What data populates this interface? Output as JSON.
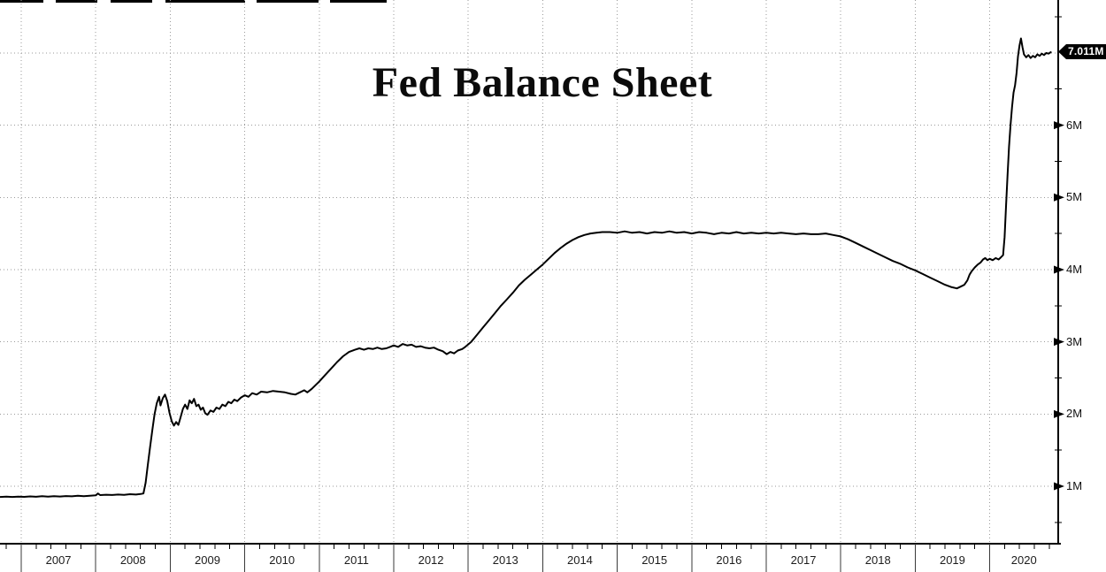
{
  "window": {
    "app": "terminal-chart"
  },
  "chart_data": {
    "type": "line",
    "title": "Fed Balance Sheet",
    "last_point_label": "7.011M",
    "legend": false,
    "grid": true,
    "x_axis": {
      "range": [
        2006.715,
        2020.92
      ],
      "tick_labels": [
        "2007",
        "2008",
        "2009",
        "2010",
        "2011",
        "2012",
        "2013",
        "2014",
        "2015",
        "2016",
        "2017",
        "2018",
        "2019",
        "2020"
      ],
      "gridline_years": [
        2007,
        2008,
        2009,
        2010,
        2011,
        2012,
        2013,
        2014,
        2015,
        2016,
        2017,
        2018,
        2019,
        2020
      ],
      "minor_ticks_per_year": 4
    },
    "y_axis": {
      "range": [
        0.205,
        7.733
      ],
      "unit": "M",
      "ticks": [
        {
          "value": 1,
          "label": "1M"
        },
        {
          "value": 2,
          "label": "2M"
        },
        {
          "value": 3,
          "label": "3M"
        },
        {
          "value": 4,
          "label": "4M"
        },
        {
          "value": 5,
          "label": "5M"
        },
        {
          "value": 6,
          "label": "6M"
        }
      ],
      "minor_tick_values": [
        0.5,
        1.5,
        2.5,
        3.5,
        4.5,
        5.5,
        6.5,
        7.5
      ]
    },
    "series": [
      {
        "name": "Fed Balance Sheet",
        "color": "#000000",
        "points": [
          [
            2006.72,
            0.853
          ],
          [
            2006.8,
            0.857
          ],
          [
            2006.88,
            0.852
          ],
          [
            2006.96,
            0.858
          ],
          [
            2007.04,
            0.854
          ],
          [
            2007.12,
            0.86
          ],
          [
            2007.2,
            0.855
          ],
          [
            2007.28,
            0.862
          ],
          [
            2007.36,
            0.857
          ],
          [
            2007.44,
            0.864
          ],
          [
            2007.52,
            0.859
          ],
          [
            2007.6,
            0.865
          ],
          [
            2007.68,
            0.861
          ],
          [
            2007.76,
            0.868
          ],
          [
            2007.84,
            0.863
          ],
          [
            2007.92,
            0.87
          ],
          [
            2008.0,
            0.875
          ],
          [
            2008.03,
            0.9
          ],
          [
            2008.06,
            0.878
          ],
          [
            2008.14,
            0.883
          ],
          [
            2008.22,
            0.879
          ],
          [
            2008.3,
            0.886
          ],
          [
            2008.38,
            0.882
          ],
          [
            2008.46,
            0.89
          ],
          [
            2008.54,
            0.886
          ],
          [
            2008.6,
            0.893
          ],
          [
            2008.64,
            0.9
          ],
          [
            2008.67,
            1.05
          ],
          [
            2008.7,
            1.3
          ],
          [
            2008.73,
            1.55
          ],
          [
            2008.76,
            1.78
          ],
          [
            2008.79,
            2.0
          ],
          [
            2008.82,
            2.15
          ],
          [
            2008.85,
            2.24
          ],
          [
            2008.87,
            2.12
          ],
          [
            2008.9,
            2.22
          ],
          [
            2008.93,
            2.27
          ],
          [
            2008.96,
            2.18
          ],
          [
            2008.99,
            2.02
          ],
          [
            2009.02,
            1.9
          ],
          [
            2009.05,
            1.84
          ],
          [
            2009.08,
            1.89
          ],
          [
            2009.11,
            1.85
          ],
          [
            2009.14,
            1.96
          ],
          [
            2009.17,
            2.07
          ],
          [
            2009.2,
            2.13
          ],
          [
            2009.23,
            2.07
          ],
          [
            2009.26,
            2.19
          ],
          [
            2009.29,
            2.15
          ],
          [
            2009.32,
            2.21
          ],
          [
            2009.35,
            2.11
          ],
          [
            2009.38,
            2.13
          ],
          [
            2009.41,
            2.06
          ],
          [
            2009.44,
            2.09
          ],
          [
            2009.47,
            2.01
          ],
          [
            2009.5,
            1.99
          ],
          [
            2009.54,
            2.05
          ],
          [
            2009.58,
            2.03
          ],
          [
            2009.62,
            2.09
          ],
          [
            2009.66,
            2.07
          ],
          [
            2009.7,
            2.13
          ],
          [
            2009.74,
            2.11
          ],
          [
            2009.78,
            2.17
          ],
          [
            2009.82,
            2.15
          ],
          [
            2009.86,
            2.2
          ],
          [
            2009.9,
            2.18
          ],
          [
            2009.95,
            2.23
          ],
          [
            2010.0,
            2.26
          ],
          [
            2010.05,
            2.24
          ],
          [
            2010.1,
            2.29
          ],
          [
            2010.16,
            2.27
          ],
          [
            2010.22,
            2.31
          ],
          [
            2010.3,
            2.3
          ],
          [
            2010.38,
            2.32
          ],
          [
            2010.46,
            2.31
          ],
          [
            2010.54,
            2.3
          ],
          [
            2010.62,
            2.28
          ],
          [
            2010.68,
            2.27
          ],
          [
            2010.74,
            2.3
          ],
          [
            2010.8,
            2.33
          ],
          [
            2010.84,
            2.3
          ],
          [
            2010.9,
            2.35
          ],
          [
            2010.95,
            2.4
          ],
          [
            2011.0,
            2.45
          ],
          [
            2011.08,
            2.54
          ],
          [
            2011.16,
            2.63
          ],
          [
            2011.24,
            2.72
          ],
          [
            2011.32,
            2.8
          ],
          [
            2011.4,
            2.86
          ],
          [
            2011.48,
            2.89
          ],
          [
            2011.54,
            2.91
          ],
          [
            2011.6,
            2.89
          ],
          [
            2011.66,
            2.91
          ],
          [
            2011.72,
            2.9
          ],
          [
            2011.78,
            2.92
          ],
          [
            2011.84,
            2.9
          ],
          [
            2011.9,
            2.91
          ],
          [
            2011.95,
            2.93
          ],
          [
            2012.0,
            2.95
          ],
          [
            2012.06,
            2.93
          ],
          [
            2012.12,
            2.97
          ],
          [
            2012.18,
            2.95
          ],
          [
            2012.24,
            2.96
          ],
          [
            2012.3,
            2.93
          ],
          [
            2012.36,
            2.94
          ],
          [
            2012.42,
            2.92
          ],
          [
            2012.48,
            2.91
          ],
          [
            2012.54,
            2.92
          ],
          [
            2012.6,
            2.89
          ],
          [
            2012.66,
            2.87
          ],
          [
            2012.71,
            2.83
          ],
          [
            2012.76,
            2.86
          ],
          [
            2012.81,
            2.84
          ],
          [
            2012.86,
            2.88
          ],
          [
            2012.92,
            2.9
          ],
          [
            2012.96,
            2.93
          ],
          [
            2013.04,
            3.0
          ],
          [
            2013.12,
            3.1
          ],
          [
            2013.2,
            3.2
          ],
          [
            2013.28,
            3.3
          ],
          [
            2013.36,
            3.4
          ],
          [
            2013.44,
            3.5
          ],
          [
            2013.52,
            3.59
          ],
          [
            2013.6,
            3.68
          ],
          [
            2013.68,
            3.78
          ],
          [
            2013.76,
            3.86
          ],
          [
            2013.84,
            3.93
          ],
          [
            2013.92,
            4.0
          ],
          [
            2014.0,
            4.07
          ],
          [
            2014.08,
            4.15
          ],
          [
            2014.16,
            4.23
          ],
          [
            2014.24,
            4.3
          ],
          [
            2014.32,
            4.36
          ],
          [
            2014.4,
            4.41
          ],
          [
            2014.48,
            4.45
          ],
          [
            2014.56,
            4.48
          ],
          [
            2014.64,
            4.5
          ],
          [
            2014.72,
            4.51
          ],
          [
            2014.8,
            4.52
          ],
          [
            2014.9,
            4.52
          ],
          [
            2015.0,
            4.51
          ],
          [
            2015.1,
            4.53
          ],
          [
            2015.2,
            4.51
          ],
          [
            2015.3,
            4.52
          ],
          [
            2015.4,
            4.5
          ],
          [
            2015.5,
            4.52
          ],
          [
            2015.6,
            4.51
          ],
          [
            2015.7,
            4.53
          ],
          [
            2015.8,
            4.51
          ],
          [
            2015.9,
            4.52
          ],
          [
            2016.0,
            4.5
          ],
          [
            2016.1,
            4.52
          ],
          [
            2016.2,
            4.51
          ],
          [
            2016.3,
            4.49
          ],
          [
            2016.4,
            4.51
          ],
          [
            2016.5,
            4.5
          ],
          [
            2016.6,
            4.52
          ],
          [
            2016.7,
            4.5
          ],
          [
            2016.8,
            4.51
          ],
          [
            2016.9,
            4.5
          ],
          [
            2017.0,
            4.51
          ],
          [
            2017.1,
            4.5
          ],
          [
            2017.2,
            4.51
          ],
          [
            2017.3,
            4.5
          ],
          [
            2017.4,
            4.49
          ],
          [
            2017.5,
            4.5
          ],
          [
            2017.6,
            4.49
          ],
          [
            2017.7,
            4.49
          ],
          [
            2017.8,
            4.5
          ],
          [
            2017.9,
            4.48
          ],
          [
            2018.0,
            4.46
          ],
          [
            2018.1,
            4.42
          ],
          [
            2018.2,
            4.37
          ],
          [
            2018.3,
            4.32
          ],
          [
            2018.4,
            4.27
          ],
          [
            2018.5,
            4.22
          ],
          [
            2018.6,
            4.17
          ],
          [
            2018.7,
            4.12
          ],
          [
            2018.8,
            4.08
          ],
          [
            2018.9,
            4.03
          ],
          [
            2019.0,
            3.99
          ],
          [
            2019.1,
            3.94
          ],
          [
            2019.2,
            3.89
          ],
          [
            2019.3,
            3.84
          ],
          [
            2019.4,
            3.79
          ],
          [
            2019.48,
            3.76
          ],
          [
            2019.56,
            3.74
          ],
          [
            2019.62,
            3.77
          ],
          [
            2019.66,
            3.79
          ],
          [
            2019.7,
            3.85
          ],
          [
            2019.73,
            3.93
          ],
          [
            2019.76,
            3.98
          ],
          [
            2019.8,
            4.03
          ],
          [
            2019.84,
            4.07
          ],
          [
            2019.88,
            4.1
          ],
          [
            2019.91,
            4.14
          ],
          [
            2019.94,
            4.16
          ],
          [
            2019.97,
            4.13
          ],
          [
            2020.0,
            4.15
          ],
          [
            2020.04,
            4.13
          ],
          [
            2020.08,
            4.16
          ],
          [
            2020.12,
            4.14
          ],
          [
            2020.15,
            4.17
          ],
          [
            2020.18,
            4.2
          ],
          [
            2020.2,
            4.45
          ],
          [
            2020.22,
            4.9
          ],
          [
            2020.24,
            5.3
          ],
          [
            2020.26,
            5.7
          ],
          [
            2020.28,
            6.0
          ],
          [
            2020.3,
            6.25
          ],
          [
            2020.32,
            6.45
          ],
          [
            2020.34,
            6.55
          ],
          [
            2020.36,
            6.72
          ],
          [
            2020.38,
            6.95
          ],
          [
            2020.4,
            7.1
          ],
          [
            2020.42,
            7.2
          ],
          [
            2020.44,
            7.08
          ],
          [
            2020.46,
            6.98
          ],
          [
            2020.49,
            6.94
          ],
          [
            2020.52,
            6.97
          ],
          [
            2020.55,
            6.93
          ],
          [
            2020.58,
            6.96
          ],
          [
            2020.61,
            6.94
          ],
          [
            2020.64,
            6.98
          ],
          [
            2020.67,
            6.96
          ],
          [
            2020.7,
            6.99
          ],
          [
            2020.73,
            6.97
          ],
          [
            2020.76,
            7.0
          ],
          [
            2020.79,
            6.99
          ],
          [
            2020.82,
            7.011
          ]
        ]
      }
    ]
  },
  "colors": {
    "line": "#000000",
    "grid": "#9a9a9a",
    "axis": "#000000",
    "year_separator": "#3a3a3a",
    "badge_bg": "#000000",
    "badge_text": "#ffffff"
  }
}
